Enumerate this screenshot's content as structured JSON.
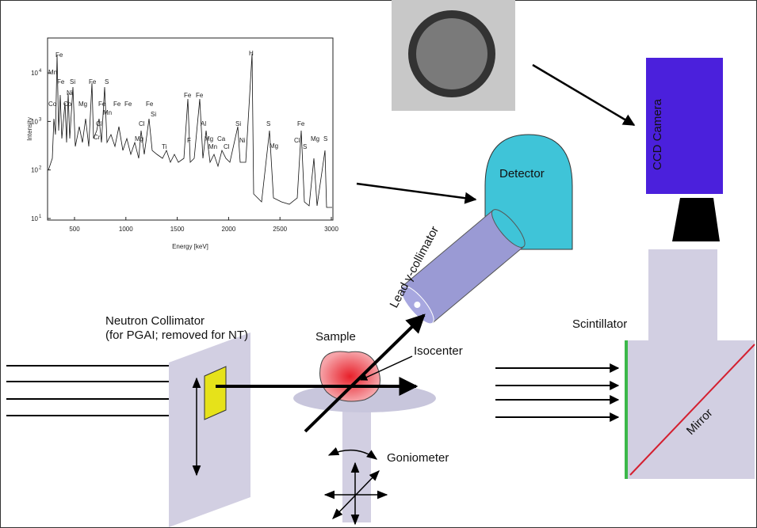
{
  "labels": {
    "neutron_collimator": "Neutron Collimator",
    "neutron_collimator_note": "(for PGAI; removed for NT)",
    "sample": "Sample",
    "isocenter": "Isocenter",
    "goniometer": "Goniometer",
    "lead_collimator": "Lead γ-collimator",
    "detector": "Detector",
    "ccd_camera": "CCD Camera",
    "scintillator": "Scintillator",
    "mirror": "Mirror"
  },
  "spectrum": {
    "y_label": "Intensity",
    "x_label": "Energy [keV]",
    "xticks": [
      500,
      1000,
      1500,
      2000,
      2500,
      3000
    ],
    "yticks": [
      {
        "value": 10,
        "label": "10",
        "exponent": "1"
      },
      {
        "value": 100,
        "label": "10",
        "exponent": "2"
      },
      {
        "value": 1000,
        "label": "10",
        "exponent": "3"
      },
      {
        "value": 10000,
        "label": "10",
        "exponent": "4"
      }
    ],
    "peaks": [
      "Fe",
      "Mn",
      "Fe",
      "Si",
      "Ni",
      "Fe",
      "S",
      "Co",
      "Co",
      "Mg",
      "Fe",
      "Fe",
      "Fe",
      "Fe",
      "Cl",
      "Mn",
      "Si",
      "Cr",
      "Mg",
      "Cl",
      "Ti",
      "Fe",
      "Fe",
      "Al",
      "F",
      "Mg",
      "Ca",
      "Mn",
      "Cl",
      "Si",
      "Ni",
      "H",
      "S",
      "Mg",
      "Fe",
      "Cl",
      "S",
      "Mg",
      "S"
    ]
  }
}
